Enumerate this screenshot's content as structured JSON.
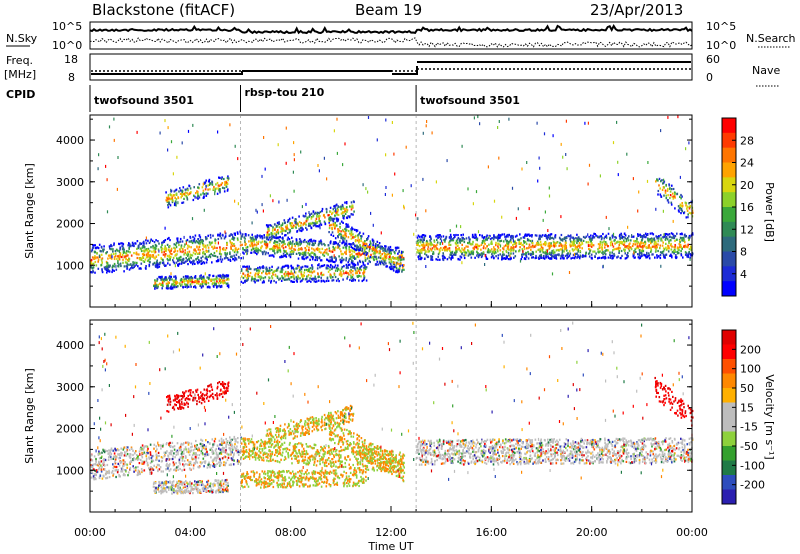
{
  "header": {
    "station": "Blackstone (fitACF)",
    "beam": "Beam 19",
    "date": "23/Apr/2013"
  },
  "left_labels": {
    "nsky": "N.Sky",
    "freq_line1": "Freq.",
    "freq_line2": "[MHz]",
    "cpid": "CPID"
  },
  "right_labels": {
    "nsearch": "N.Search",
    "nave": "Nave"
  },
  "noise_axis": {
    "left_top": "10^5",
    "left_bottom": "10^0",
    "right_top": "10^5",
    "right_bottom": "10^0"
  },
  "freq_axis": {
    "ticks": [
      "18",
      "8"
    ]
  },
  "nave_axis": {
    "ticks": [
      "60",
      "0"
    ]
  },
  "cpid_segments": [
    {
      "label": "twofsound 3501",
      "start_h": 0,
      "end_h": 6
    },
    {
      "label": "rbsp-tou 210",
      "start_h": 6,
      "end_h": 13
    },
    {
      "label": "twofsound 3501",
      "start_h": 13,
      "end_h": 24
    }
  ],
  "chart_data": [
    {
      "type": "heatmap",
      "ylabel": "Slant Range [km]",
      "x_range_h": [
        0,
        24
      ],
      "ylim": [
        0,
        4600
      ],
      "yticks": [
        "1000",
        "2000",
        "3000",
        "4000"
      ],
      "colorbar": {
        "label": "Power [dB]",
        "ticks": [
          "28",
          "24",
          "20",
          "16",
          "12",
          "8",
          "4"
        ],
        "colors": [
          "#0000ff",
          "#1c2bd6",
          "#2a4aa8",
          "#2d6a7c",
          "#2f8a55",
          "#3aa83a",
          "#8cd12a",
          "#d8d60e",
          "#ffa300",
          "#ff7500",
          "#ff3a00",
          "#ff0000"
        ]
      }
    },
    {
      "type": "heatmap",
      "ylabel": "Slant Range [km]",
      "x_range_h": [
        0,
        24
      ],
      "ylim": [
        0,
        4600
      ],
      "yticks": [
        "1000",
        "2000",
        "3000",
        "4000"
      ],
      "colorbar": {
        "label": "Velocity [m s⁻¹]",
        "ticks": [
          "200",
          "100",
          "50",
          "15",
          "-15",
          "-50",
          "-100",
          "-200"
        ],
        "colors": [
          "#2b1fb0",
          "#2d4dbd",
          "#1f7a46",
          "#34a02e",
          "#8ed13c",
          "#bdbdbd",
          "#bdbdbd",
          "#ffb000",
          "#ff8800",
          "#ff5000",
          "#ff0000",
          "#e00000"
        ]
      }
    }
  ],
  "x_axis": {
    "label": "Time UT",
    "ticks": [
      "00:00",
      "04:00",
      "08:00",
      "12:00",
      "16:00",
      "20:00",
      "00:00"
    ]
  }
}
